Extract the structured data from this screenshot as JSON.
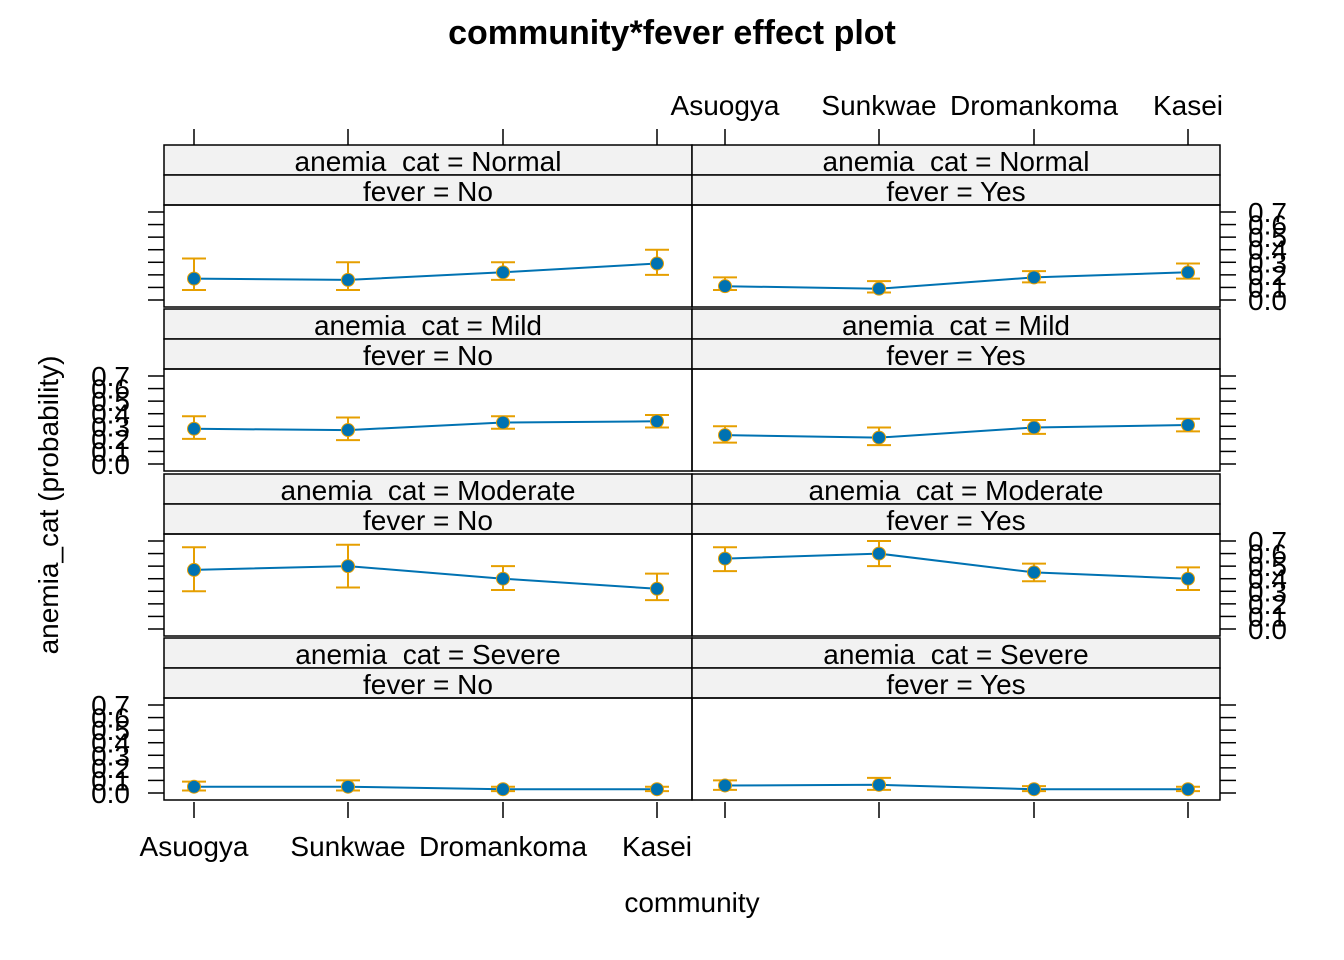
{
  "chart_data": {
    "type": "line",
    "title": "community*fever effect plot",
    "xlabel": "community",
    "ylabel": "anemia_cat (probability)",
    "categories": [
      "Asuogya",
      "Sunkwae",
      "Dromankoma",
      "Kasei"
    ],
    "y_ticks": [
      "0.0",
      "0.1",
      "0.2",
      "0.3",
      "0.4",
      "0.5",
      "0.6",
      "0.7"
    ],
    "ylim": [
      0.0,
      0.7
    ],
    "grid": false,
    "legend": "none",
    "colors": {
      "line": "#0072B2",
      "point": "#0072B2",
      "error_bar": "#E69F00",
      "strip_bg": "#F2F2F2",
      "frame": "#000000"
    },
    "panels": [
      {
        "anemia_cat_label": "anemia_cat = Severe",
        "fever_label": "fever = No",
        "values": [
          0.05,
          0.05,
          0.03,
          0.03
        ],
        "lower": [
          0.02,
          0.02,
          0.015,
          0.015
        ],
        "upper": [
          0.09,
          0.1,
          0.05,
          0.05
        ]
      },
      {
        "anemia_cat_label": "anemia_cat = Severe",
        "fever_label": "fever = Yes",
        "values": [
          0.06,
          0.065,
          0.03,
          0.03
        ],
        "lower": [
          0.025,
          0.025,
          0.015,
          0.015
        ],
        "upper": [
          0.1,
          0.12,
          0.055,
          0.05
        ]
      },
      {
        "anemia_cat_label": "anemia_cat = Moderate",
        "fever_label": "fever = No",
        "values": [
          0.47,
          0.5,
          0.4,
          0.32
        ],
        "lower": [
          0.3,
          0.33,
          0.31,
          0.23
        ],
        "upper": [
          0.65,
          0.67,
          0.5,
          0.44
        ]
      },
      {
        "anemia_cat_label": "anemia_cat = Moderate",
        "fever_label": "fever = Yes",
        "values": [
          0.56,
          0.6,
          0.45,
          0.4
        ],
        "lower": [
          0.46,
          0.5,
          0.38,
          0.31
        ],
        "upper": [
          0.65,
          0.7,
          0.52,
          0.49
        ]
      },
      {
        "anemia_cat_label": "anemia_cat = Mild",
        "fever_label": "fever = No",
        "values": [
          0.28,
          0.27,
          0.33,
          0.34
        ],
        "lower": [
          0.2,
          0.19,
          0.28,
          0.29
        ],
        "upper": [
          0.38,
          0.37,
          0.38,
          0.39
        ]
      },
      {
        "anemia_cat_label": "anemia_cat = Mild",
        "fever_label": "fever = Yes",
        "values": [
          0.23,
          0.21,
          0.29,
          0.31
        ],
        "lower": [
          0.17,
          0.15,
          0.24,
          0.26
        ],
        "upper": [
          0.3,
          0.29,
          0.35,
          0.36
        ]
      },
      {
        "anemia_cat_label": "anemia_cat = Normal",
        "fever_label": "fever = No",
        "values": [
          0.17,
          0.16,
          0.22,
          0.29
        ],
        "lower": [
          0.08,
          0.08,
          0.16,
          0.2
        ],
        "upper": [
          0.33,
          0.3,
          0.3,
          0.4
        ]
      },
      {
        "anemia_cat_label": "anemia_cat = Normal",
        "fever_label": "fever = Yes",
        "values": [
          0.11,
          0.09,
          0.18,
          0.22
        ],
        "lower": [
          0.08,
          0.06,
          0.14,
          0.17
        ],
        "upper": [
          0.18,
          0.15,
          0.23,
          0.29
        ]
      }
    ]
  }
}
